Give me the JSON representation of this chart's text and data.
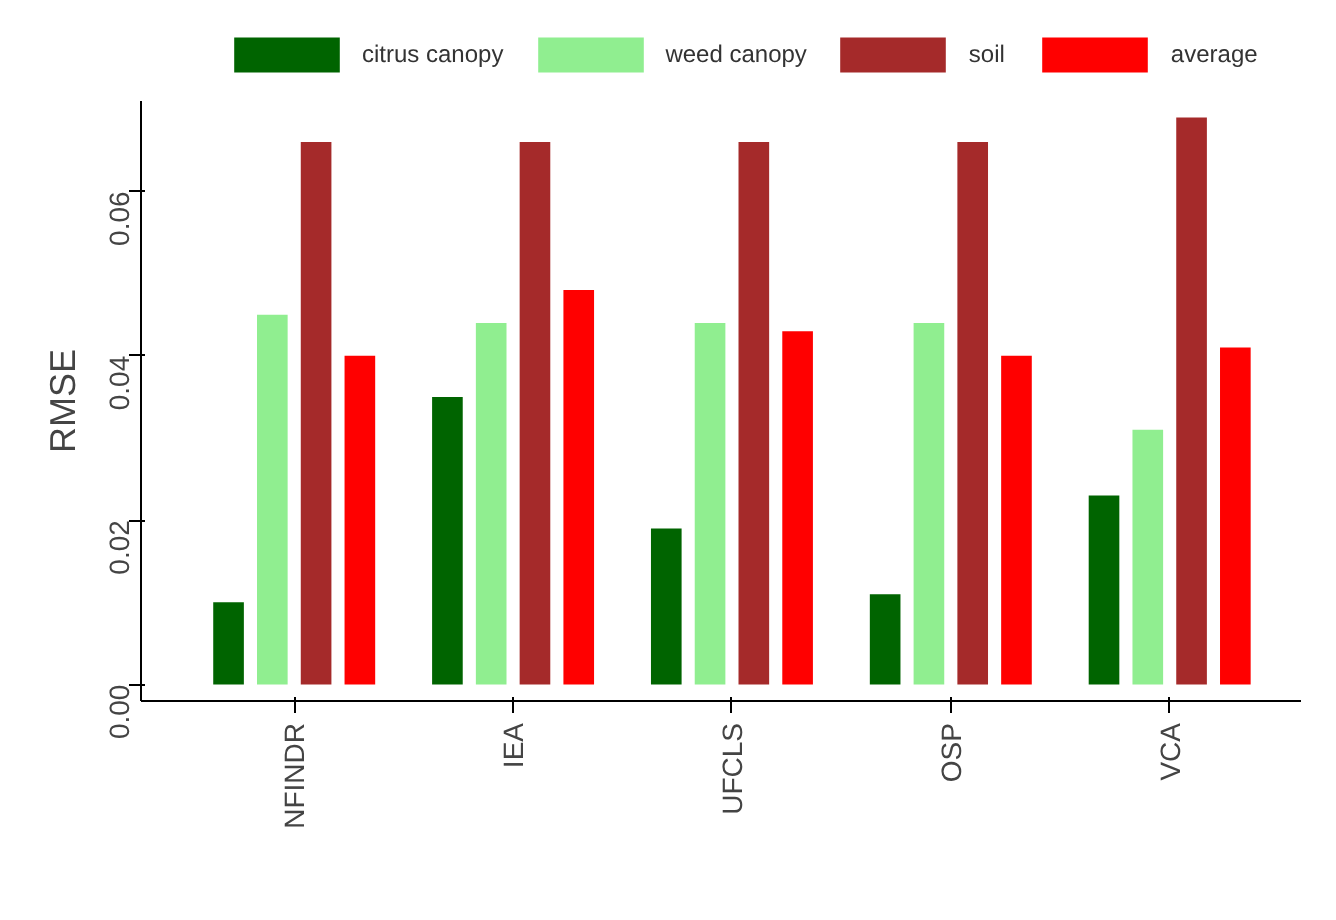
{
  "chart_data": {
    "type": "bar",
    "ylabel": "RMSE",
    "categories": [
      "NFINDR",
      "IEA",
      "UFCLS",
      "OSP",
      "VCA"
    ],
    "series": [
      {
        "name": "citrus canopy",
        "color": "#006400",
        "values": [
          0.01,
          0.035,
          0.019,
          0.011,
          0.023
        ]
      },
      {
        "name": "weed canopy",
        "color": "#90ee90",
        "values": [
          0.045,
          0.044,
          0.044,
          0.044,
          0.031
        ]
      },
      {
        "name": "soil",
        "color": "#a52a2a",
        "values": [
          0.066,
          0.066,
          0.066,
          0.066,
          0.069
        ]
      },
      {
        "name": "average",
        "color": "#ff0000",
        "values": [
          0.04,
          0.048,
          0.043,
          0.04,
          0.041
        ]
      }
    ],
    "ylim": [
      -0.002,
      0.071
    ],
    "yticks": [
      {
        "value": 0,
        "label": "0.00"
      },
      0.02,
      0.04,
      0.06
    ],
    "grid": false,
    "legend": "top"
  }
}
